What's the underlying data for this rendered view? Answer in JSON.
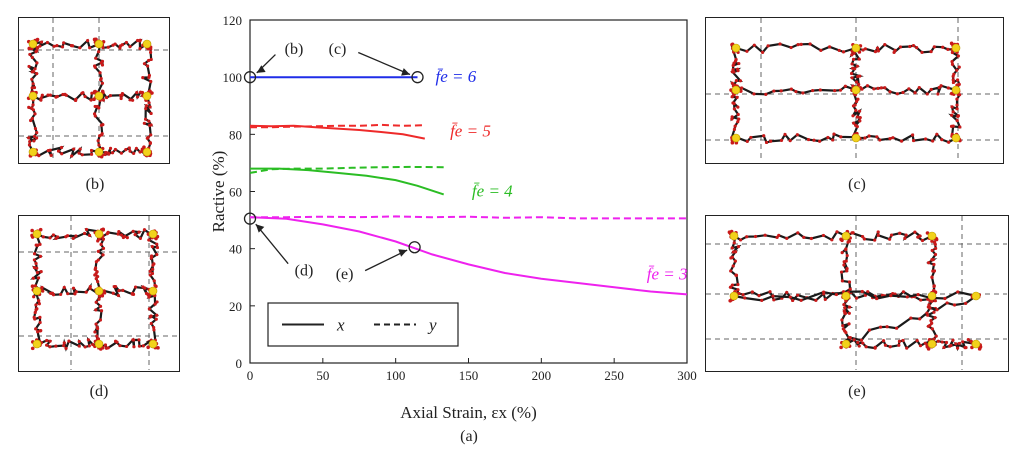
{
  "panels": {
    "b": "(b)",
    "c": "(c)",
    "d": "(d)",
    "e": "(e)",
    "a": "(a)"
  },
  "colors": {
    "f6": "#1f2de8",
    "f5": "#ee2a2a",
    "f4": "#2bbd24",
    "f3": "#ee22ee",
    "chain": "#1a1a1a",
    "bead": "#c91a1a",
    "crosslink": "#f2d21b"
  },
  "chart_data": {
    "type": "line",
    "xlabel": "Axial Strain, ε_x (%)",
    "ylabel": "R_active (%)",
    "xlim": [
      0,
      300
    ],
    "ylim": [
      0,
      120
    ],
    "xticks": [
      "0",
      "50",
      "100",
      "150",
      "200",
      "250",
      "300"
    ],
    "yticks": [
      "0",
      "20",
      "40",
      "60",
      "80",
      "100",
      "120"
    ],
    "grid": false,
    "legend": {
      "location": "bottom-left",
      "entries": [
        {
          "style": "solid",
          "label": "x"
        },
        {
          "style": "dashed",
          "label": "y"
        }
      ]
    },
    "series": [
      {
        "name": "f̄e = 6",
        "color_key": "f6",
        "style": "solid",
        "points": [
          [
            0,
            100
          ],
          [
            20,
            100
          ],
          [
            40,
            100
          ],
          [
            60,
            100
          ],
          [
            80,
            100
          ],
          [
            100,
            100
          ],
          [
            115,
            100
          ]
        ]
      },
      {
        "name": "f̄e = 5",
        "color_key": "f5",
        "style": "solid",
        "points": [
          [
            0,
            83
          ],
          [
            15,
            82.8
          ],
          [
            30,
            83
          ],
          [
            45,
            82.5
          ],
          [
            60,
            82
          ],
          [
            75,
            81.5
          ],
          [
            90,
            80.8
          ],
          [
            105,
            80
          ],
          [
            120,
            78.5
          ]
        ]
      },
      {
        "name": "f̄e = 5",
        "color_key": "f5",
        "style": "dashed",
        "points": [
          [
            0,
            82.5
          ],
          [
            15,
            82.5
          ],
          [
            30,
            82.7
          ],
          [
            45,
            82.8
          ],
          [
            60,
            83
          ],
          [
            75,
            83
          ],
          [
            90,
            83.3
          ],
          [
            105,
            83
          ],
          [
            120,
            83.2
          ]
        ]
      },
      {
        "name": "f̄e = 4",
        "color_key": "f4",
        "style": "solid",
        "points": [
          [
            0,
            68
          ],
          [
            20,
            68
          ],
          [
            40,
            67.5
          ],
          [
            60,
            66.5
          ],
          [
            80,
            65.5
          ],
          [
            100,
            64
          ],
          [
            115,
            62
          ],
          [
            133,
            59
          ]
        ]
      },
      {
        "name": "f̄e = 4",
        "color_key": "f4",
        "style": "dashed",
        "points": [
          [
            0,
            66.5
          ],
          [
            15,
            67.8
          ],
          [
            30,
            68
          ],
          [
            50,
            68
          ],
          [
            70,
            68.3
          ],
          [
            90,
            68.5
          ],
          [
            110,
            68.6
          ],
          [
            133,
            68.5
          ]
        ]
      },
      {
        "name": "f̄e = 3",
        "color_key": "f3",
        "style": "solid",
        "points": [
          [
            0,
            51
          ],
          [
            25,
            50.5
          ],
          [
            50,
            48.5
          ],
          [
            75,
            46
          ],
          [
            100,
            42.5
          ],
          [
            125,
            38
          ],
          [
            150,
            34.5
          ],
          [
            175,
            31.5
          ],
          [
            200,
            29.5
          ],
          [
            225,
            28
          ],
          [
            250,
            26.5
          ],
          [
            275,
            25
          ],
          [
            300,
            24
          ]
        ]
      },
      {
        "name": "f̄e = 3",
        "color_key": "f3",
        "style": "dashed",
        "points": [
          [
            0,
            51
          ],
          [
            25,
            51
          ],
          [
            50,
            51.2
          ],
          [
            75,
            51
          ],
          [
            100,
            51.3
          ],
          [
            125,
            51
          ],
          [
            150,
            51.2
          ],
          [
            175,
            50.8
          ],
          [
            200,
            51
          ],
          [
            225,
            50.6
          ],
          [
            250,
            50.6
          ],
          [
            275,
            50.6
          ],
          [
            300,
            50.6
          ]
        ]
      }
    ],
    "series_labels": [
      {
        "text": "f̄e = 6",
        "color_key": "f6",
        "at": [
          115,
          100
        ]
      },
      {
        "text": "f̄e = 5",
        "color_key": "f5",
        "at": [
          125,
          81
        ]
      },
      {
        "text": "f̄e = 4",
        "color_key": "f4",
        "at": [
          140,
          60
        ]
      },
      {
        "text": "f̄e = 3",
        "color_key": "f3",
        "at": [
          260,
          31
        ]
      }
    ],
    "markers": [
      {
        "name": "b",
        "text": "(b)",
        "point": [
          0,
          100
        ]
      },
      {
        "name": "c",
        "text": "(c)",
        "point": [
          115,
          100
        ]
      },
      {
        "name": "d",
        "text": "(d)",
        "point": [
          0,
          50.5
        ]
      },
      {
        "name": "e",
        "text": "(e)",
        "point": [
          113,
          40.5
        ]
      }
    ]
  }
}
